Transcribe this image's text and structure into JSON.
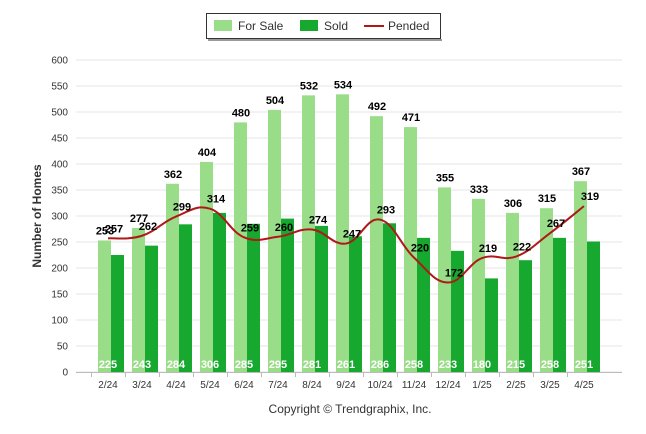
{
  "chart_data": {
    "type": "bar",
    "categories": [
      "2/24",
      "3/24",
      "4/24",
      "5/24",
      "6/24",
      "7/24",
      "8/24",
      "9/24",
      "10/24",
      "11/24",
      "12/24",
      "1/25",
      "2/25",
      "3/25",
      "4/25"
    ],
    "series": [
      {
        "name": "For Sale",
        "kind": "bar",
        "color": "#99dd88",
        "values": [
          253,
          277,
          362,
          404,
          480,
          504,
          532,
          534,
          492,
          471,
          355,
          333,
          306,
          315,
          367
        ]
      },
      {
        "name": "Sold",
        "kind": "bar",
        "color": "#17a82f",
        "values": [
          225,
          243,
          284,
          306,
          285,
          295,
          281,
          261,
          286,
          258,
          233,
          180,
          215,
          258,
          251
        ]
      },
      {
        "name": "Pended",
        "kind": "line",
        "color": "#b01818",
        "values": [
          257,
          262,
          299,
          314,
          259,
          260,
          274,
          247,
          293,
          220,
          172,
          219,
          222,
          267,
          319
        ]
      }
    ],
    "ylabel": "Number of Homes",
    "xlabel": "",
    "ylim": [
      0,
      600
    ],
    "yticks": [
      0,
      50,
      100,
      150,
      200,
      250,
      300,
      350,
      400,
      450,
      500,
      550,
      600
    ],
    "grid": true,
    "legend": "top-center",
    "credit": "Copyright © Trendgraphix, Inc."
  }
}
